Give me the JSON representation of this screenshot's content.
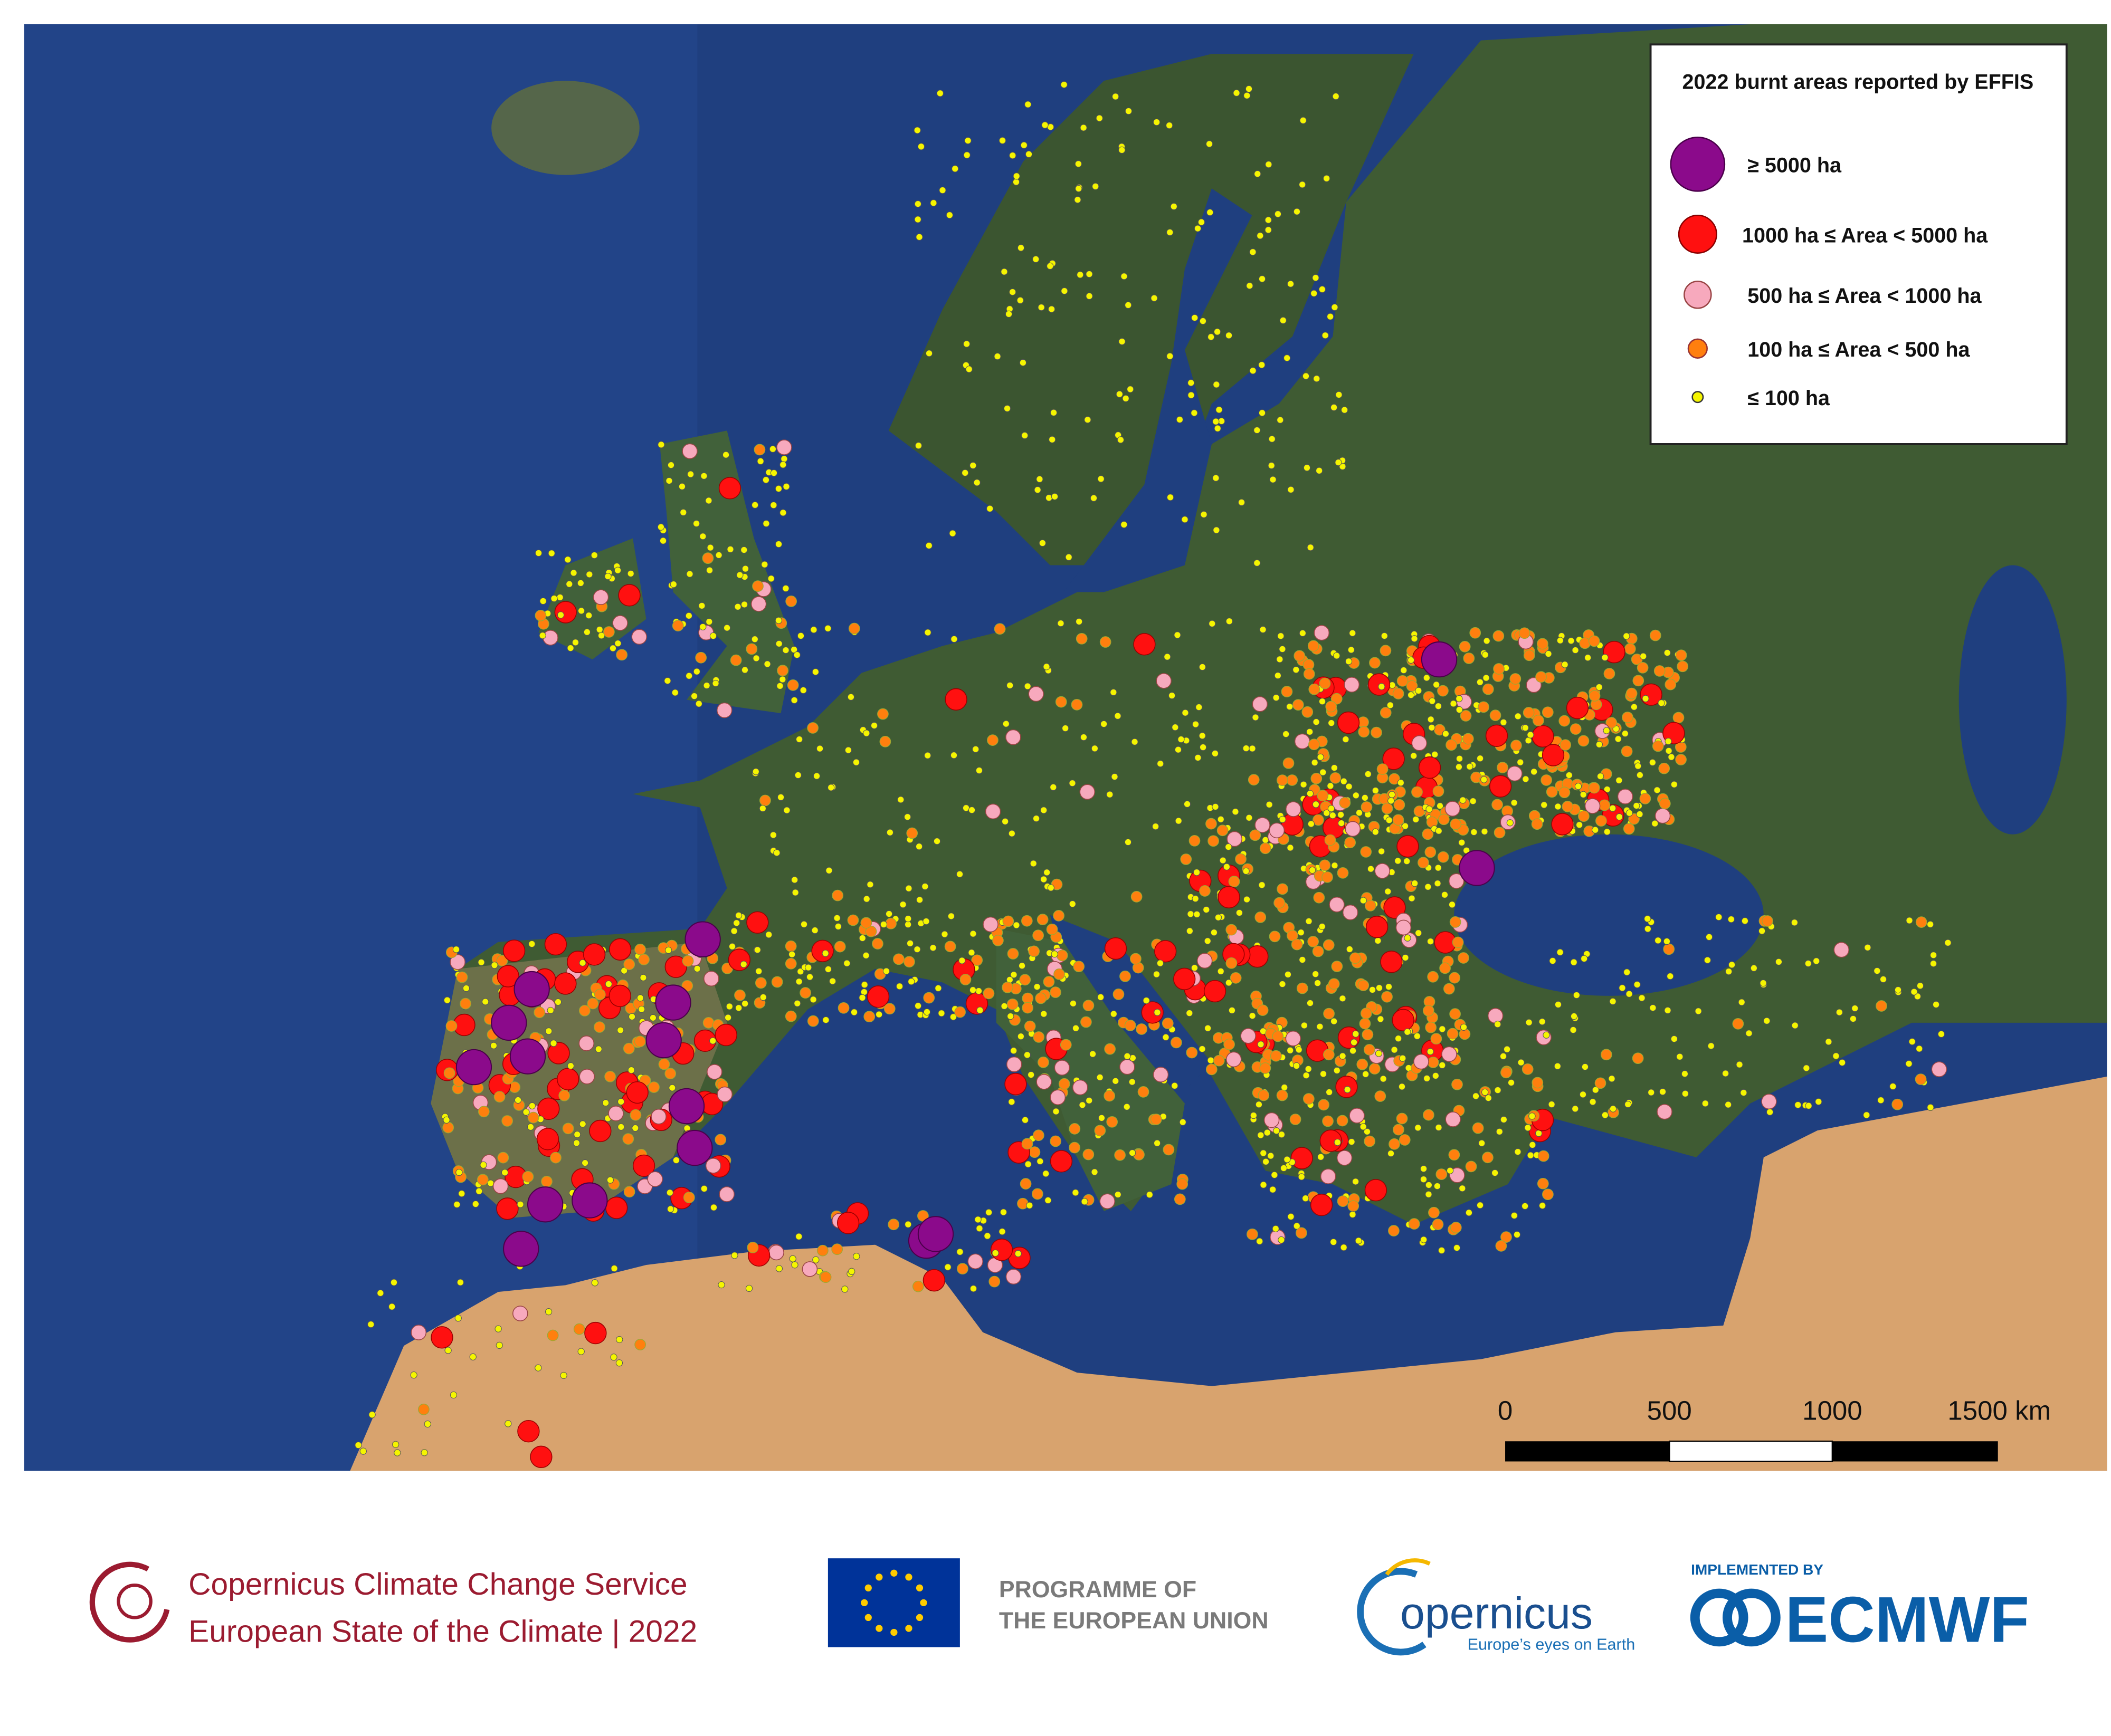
{
  "legend": {
    "title": "2022 burnt areas reported by EFFIS",
    "items": [
      "≥ 5000 ha",
      "1000 ha ≤ Area < 5000 ha",
      "500 ha ≤ Area < 1000 ha",
      "100 ha ≤ Area < 500 ha",
      "≤ 100 ha"
    ]
  },
  "scale_bar": {
    "labels": [
      "0",
      "500",
      "1000",
      "1500 km"
    ]
  },
  "footer": {
    "service": "Copernicus Climate Change Service",
    "report": "European State of the Climate | 2022",
    "eu_programme": [
      "PROGRAMME OF",
      "THE EUROPEAN UNION"
    ],
    "copernicus": "opernicus",
    "copernicus_tagline": "Europe’s eyes on Earth",
    "implemented_by": "IMPLEMENTED BY",
    "ecmwf": "ECMWF"
  }
}
